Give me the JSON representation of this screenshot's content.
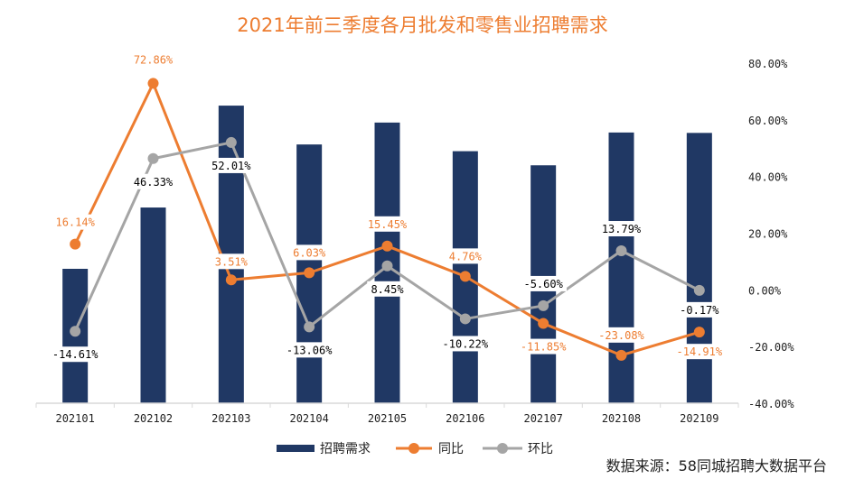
{
  "chart_data": {
    "type": "bar+line",
    "title": "2021年前三季度各月批发和零售业招聘需求",
    "categories": [
      "202101",
      "202102",
      "202103",
      "202104",
      "202105",
      "202106",
      "202107",
      "202108",
      "202109"
    ],
    "bar_series": {
      "name": "招聘需求",
      "values": [
        100,
        145.6,
        221.4,
        192.5,
        208.8,
        187.5,
        177.0,
        201.4,
        201.1
      ],
      "ylim": [
        0,
        253
      ],
      "color": "#203864"
    },
    "line_series": [
      {
        "name": "同比",
        "values": [
          16.14,
          72.86,
          3.51,
          6.03,
          15.45,
          4.76,
          -11.85,
          -23.08,
          -14.91
        ],
        "labels": [
          "16.14%",
          "72.86%",
          "3.51%",
          "6.03%",
          "15.45%",
          "4.76%",
          "-11.85%",
          "-23.08%",
          "-14.91%"
        ],
        "color": "#ED7D31"
      },
      {
        "name": "环比",
        "values": [
          -14.61,
          46.33,
          52.01,
          -13.06,
          8.45,
          -10.22,
          -5.6,
          13.79,
          -0.17
        ],
        "labels": [
          "-14.61%",
          "46.33%",
          "52.01%",
          "-13.06%",
          "8.45%",
          "-10.22%",
          "-5.60%",
          "13.79%",
          "-0.17%"
        ],
        "color": "#A5A5A5"
      }
    ],
    "right_axis": {
      "ylim": [
        -40,
        80
      ],
      "ticks": [
        "80.00%",
        "60.00%",
        "40.00%",
        "20.00%",
        "0.00%",
        "-20.00%",
        "-40.00%"
      ]
    },
    "grid": false,
    "legend": "bottom"
  },
  "source": "数据来源：58同城招聘大数据平台"
}
